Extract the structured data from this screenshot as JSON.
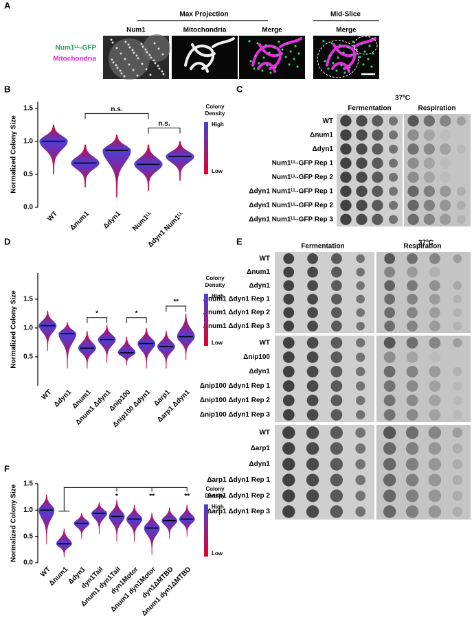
{
  "panel_labels": [
    "A",
    "B",
    "C",
    "D",
    "E",
    "F"
  ],
  "panel_A": {
    "group_titles": [
      "Max Projection",
      "Mid-Slice"
    ],
    "image_titles": [
      "Num1",
      "Mitochondria",
      "Merge",
      "Merge"
    ],
    "channels": [
      "Num1ᴸᴸ-GFP",
      "Mitochondria"
    ]
  },
  "panel_C": {
    "temperature": "37ºC",
    "conditions": [
      "Fermentation",
      "Respiration"
    ],
    "rows": [
      "WT",
      "Δnum1",
      "Δdyn1",
      "Num1ᴸᴸ-GFP Rep 1",
      "Num1ᴸᴸ-GFP Rep 2",
      "Δdyn1 Num1ᴸᴸ-GFP Rep 1",
      "Δdyn1 Num1ᴸᴸ-GFP Rep 2",
      "Δdyn1 Num1ᴸᴸ-GFP Rep 3"
    ]
  },
  "panel_E": {
    "temperature": "37ºC",
    "conditions": [
      "Fermentation",
      "Respiration"
    ],
    "groups": [
      [
        "WT",
        "Δnum1",
        "Δdyn1",
        "Δnum1 Δdyn1 Rep 1",
        "Δnum1 Δdyn1 Rep 2",
        "Δnum1 Δdyn1 Rep 3"
      ],
      [
        "WT",
        "Δnip100",
        "Δdyn1",
        "Δnip100 Δdyn1 Rep 1",
        "Δnip100 Δdyn1 Rep 2",
        "Δnip100 Δdyn1 Rep 3"
      ],
      [
        "WT",
        "Δarp1",
        "Δdyn1",
        "Δarp1 Δdyn1 Rep 1",
        "Δarp1 Δdyn1 Rep 2",
        "Δarp1 Δdyn1 Rep 3"
      ]
    ]
  },
  "chart_data": [
    {
      "type": "violin",
      "y_label": "Normalized Colony Size",
      "categories": [
        "WT",
        "Δnum1",
        "Δdyn1",
        "Num1ᴸᴸ",
        "Δdyn1 Num1ᴸᴸ"
      ],
      "values": [
        1.0,
        0.67,
        0.86,
        0.65,
        0.77
      ],
      "mins": [
        0.5,
        0.3,
        0.15,
        0.25,
        0.4
      ],
      "maxs": [
        1.25,
        0.95,
        1.1,
        0.95,
        1.0
      ],
      "ylim": [
        0,
        1.6
      ],
      "yticks": [
        {
          "value": 0,
          "label": "0.0"
        },
        {
          "value": 0.5,
          "label": "0.5"
        },
        {
          "value": 1,
          "label": "1.0"
        },
        {
          "value": 1.5,
          "label": "1.5"
        }
      ],
      "annotations": [
        "n.s.",
        "n.s."
      ],
      "colorbar_title": [
        "Colony",
        "Density"
      ],
      "colorbar_labels": [
        "High",
        "Low"
      ],
      "color_high": "#4b3fd8",
      "color_low": "#e4002b"
    },
    {
      "type": "violin",
      "y_label": "Normalized Colony Size",
      "categories": [
        "WT",
        "Δdyn1",
        "Δnum1",
        "Δnum1 Δdyn1",
        "Δnip100",
        "Δnip100 Δdyn1",
        "Δarp1",
        "Δarp1 Δdyn1"
      ],
      "values": [
        1.04,
        0.9,
        0.65,
        0.8,
        0.57,
        0.73,
        0.68,
        0.85
      ],
      "mins": [
        0.6,
        0.3,
        0.3,
        0.4,
        0.35,
        0.3,
        0.3,
        0.45
      ],
      "maxs": [
        1.3,
        1.1,
        0.95,
        1.05,
        0.85,
        1.0,
        0.95,
        1.25
      ],
      "ylim": [
        0,
        1.95
      ],
      "yticks": [
        {
          "value": 0.5,
          "label": "0.5"
        },
        {
          "value": 1,
          "label": "1.0"
        },
        {
          "value": 1.5,
          "label": "1.5"
        }
      ],
      "annotations": [
        "*",
        "*",
        "**"
      ],
      "colorbar_title": [
        "Colony",
        "Density"
      ],
      "colorbar_labels": [
        "High",
        "Low"
      ],
      "color_high": "#4b3fd8",
      "color_low": "#e4002b"
    },
    {
      "type": "violin",
      "y_label": "Normalized Colony Size",
      "categories": [
        "WT",
        "Δnum1",
        "Δdyn1",
        "dyn1Tail",
        "Δnum1 dyn1Tail",
        "dyn1Motor",
        "Δnum1 dyn1Motor",
        "dyn1ΔMTBD",
        "Δnum1 dyn1ΔMTBD"
      ],
      "values": [
        1.0,
        0.36,
        0.75,
        0.94,
        0.88,
        0.83,
        0.66,
        0.8,
        0.83
      ],
      "mins": [
        0.35,
        0.1,
        0.45,
        0.55,
        0.4,
        0.4,
        0.15,
        0.45,
        0.5
      ],
      "maxs": [
        1.3,
        0.65,
        0.95,
        1.15,
        1.2,
        1.1,
        0.95,
        1.05,
        1.1
      ],
      "ylim": [
        0,
        1.5
      ],
      "yticks": [
        {
          "value": 0,
          "label": "0.0"
        },
        {
          "value": 0.5,
          "label": "0.5"
        },
        {
          "value": 1,
          "label": "1.0"
        },
        {
          "value": 1.5,
          "label": "1.5"
        }
      ],
      "annotations": [
        "*",
        "**",
        "**"
      ],
      "colorbar_title": [
        "Colony",
        "Density"
      ],
      "colorbar_labels": [
        "High",
        "Low"
      ],
      "color_high": "#4b3fd8",
      "color_low": "#e4002b"
    }
  ]
}
